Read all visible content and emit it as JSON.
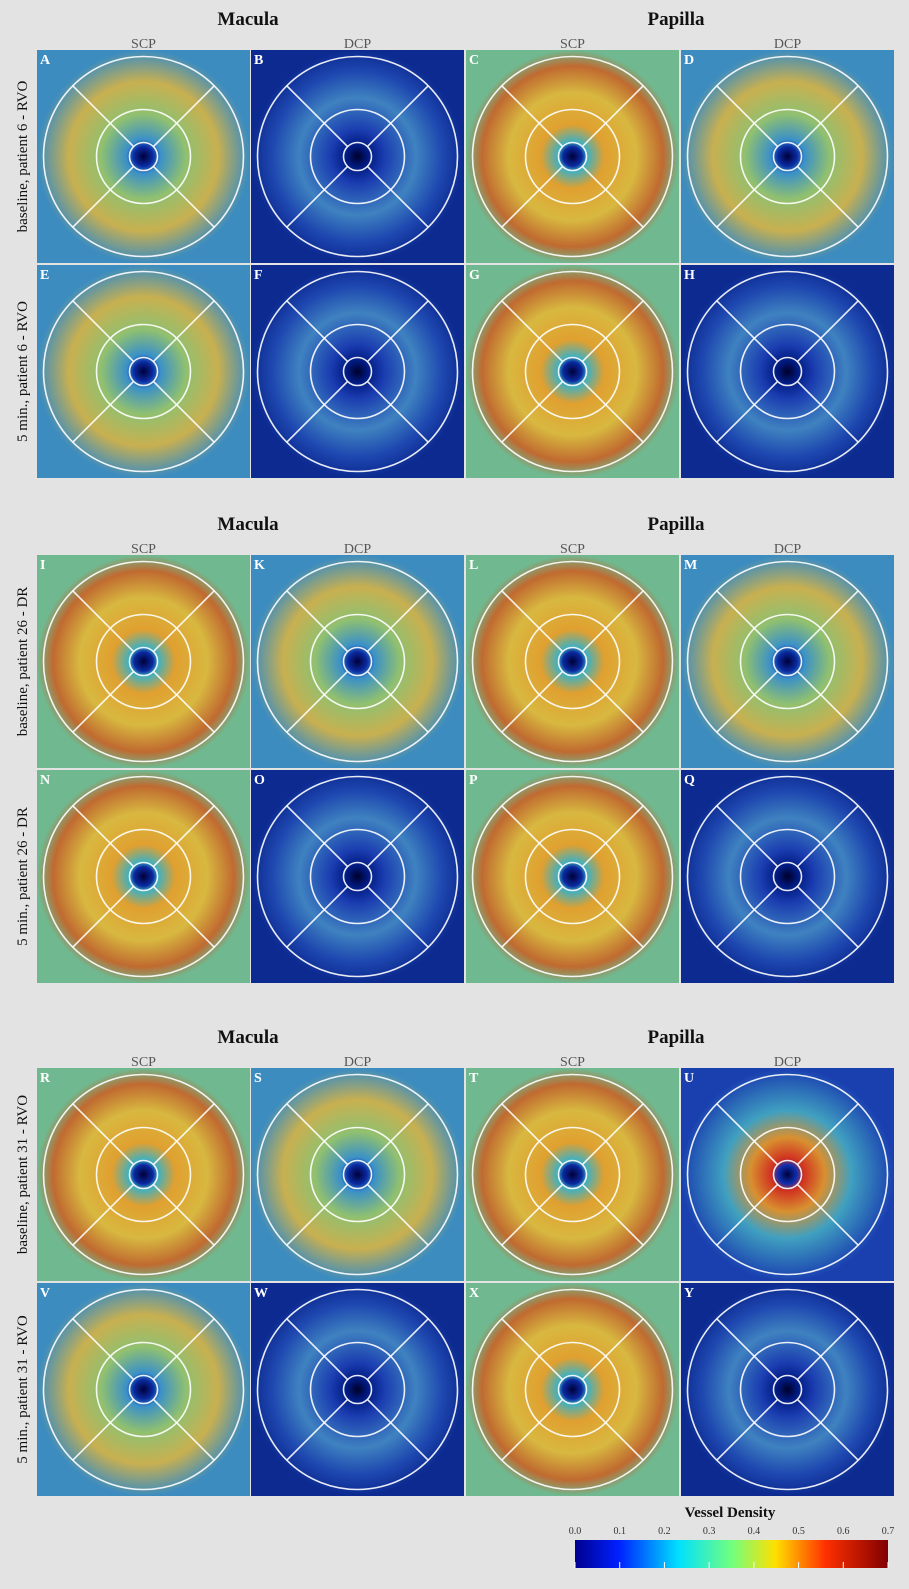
{
  "groups": [
    {
      "headers": [
        "Macula",
        "Papilla"
      ],
      "subheaders": [
        "SCP",
        "DCP",
        "SCP",
        "DCP"
      ],
      "rows": [
        {
          "label": "baseline, patient 6 - RVO",
          "panels": [
            "A",
            "B",
            "C",
            "D"
          ]
        },
        {
          "label": "5 min., patient 6 - RVO",
          "panels": [
            "E",
            "F",
            "G",
            "H"
          ]
        }
      ]
    },
    {
      "headers": [
        "Macula",
        "Papilla"
      ],
      "subheaders": [
        "SCP",
        "DCP",
        "SCP",
        "DCP"
      ],
      "rows": [
        {
          "label": "baseline, patient 26 - DR",
          "panels": [
            "I",
            "K",
            "L",
            "M"
          ]
        },
        {
          "label": "5 min., patient 26 - DR",
          "panels": [
            "N",
            "O",
            "P",
            "Q"
          ]
        }
      ]
    },
    {
      "headers": [
        "Macula",
        "Papilla"
      ],
      "subheaders": [
        "SCP",
        "DCP",
        "SCP",
        "DCP"
      ],
      "rows": [
        {
          "label": "baseline, patient 31 - RVO",
          "panels": [
            "R",
            "S",
            "T",
            "U"
          ]
        },
        {
          "label": "5 min., patient 31 - RVO",
          "panels": [
            "V",
            "W",
            "X",
            "Y"
          ]
        }
      ]
    }
  ],
  "colorbar": {
    "title": "Vessel Density",
    "ticks": [
      "0.0",
      "0.1",
      "0.2",
      "0.3",
      "0.4",
      "0.5",
      "0.6",
      "0.7"
    ]
  }
}
